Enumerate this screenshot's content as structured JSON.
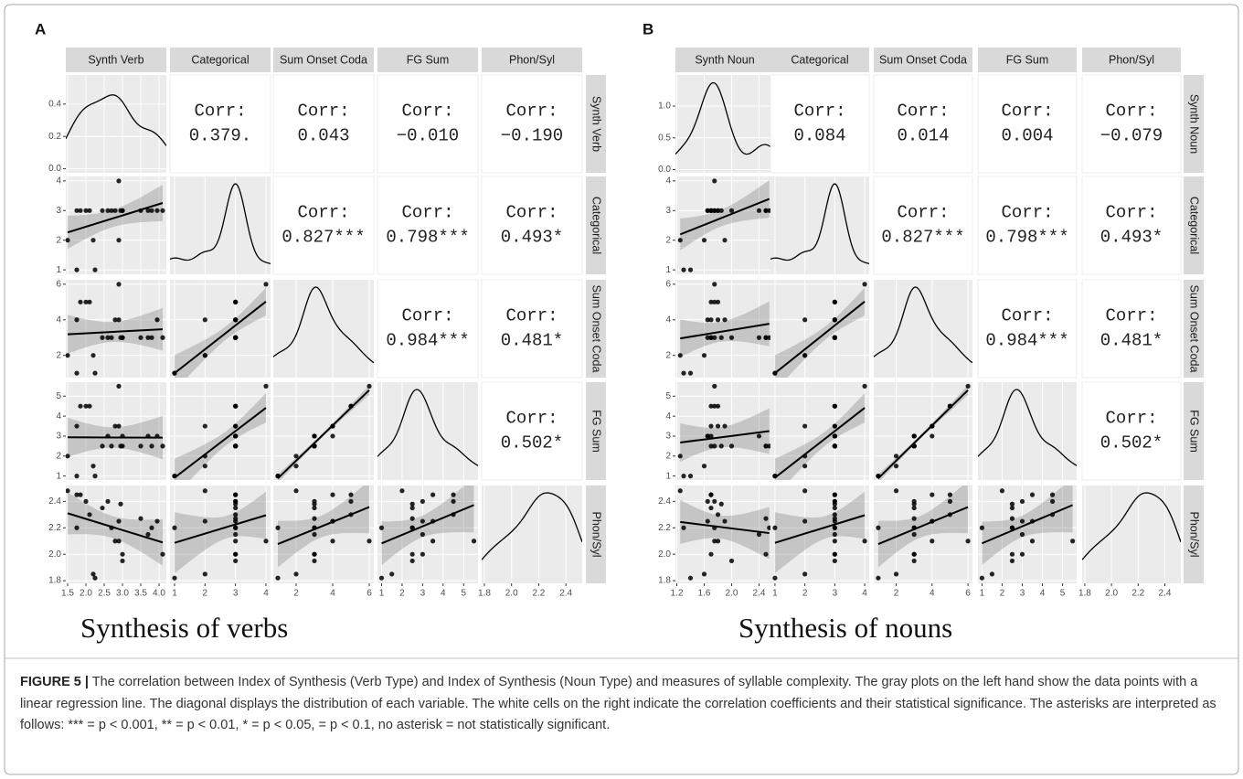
{
  "panels": [
    {
      "label": "A",
      "title": "Synthesis of verbs",
      "corr_label": "Corr:",
      "variables": [
        {
          "name": "Synth Verb",
          "values": [
            1.5,
            1.75,
            1.75,
            1.85,
            2.0,
            2.1,
            2.2,
            2.25,
            2.45,
            2.6,
            2.7,
            2.8,
            2.9,
            2.9,
            2.95,
            3.0,
            3.0,
            3.5,
            3.7,
            3.8,
            4.1,
            3.95
          ],
          "lim": [
            1.45,
            4.2
          ],
          "ticks": [
            1.5,
            {
              "value": 2,
              "label": "2.0"
            },
            2.5,
            {
              "value": 3,
              "label": "3.0"
            },
            3.5,
            {
              "value": 4,
              "label": "4.0"
            }
          ]
        },
        {
          "name": "Categorical",
          "values": [
            2,
            1,
            3,
            3,
            3,
            3,
            2,
            1,
            3,
            3,
            3,
            3,
            2,
            4,
            3,
            3,
            3,
            3,
            3,
            3,
            3,
            3
          ],
          "lim": [
            0.85,
            4.15
          ],
          "ticks": [
            1,
            2,
            3,
            4
          ]
        },
        {
          "name": "Sum Onset Coda",
          "values": [
            2,
            1,
            4,
            5,
            5,
            5,
            2,
            1,
            3,
            3,
            3,
            4,
            4,
            6,
            3,
            3,
            3,
            3,
            3,
            3,
            3,
            4
          ],
          "lim": [
            0.75,
            6.25
          ],
          "ticks": [
            2,
            4,
            6
          ]
        },
        {
          "name": "FG Sum",
          "values": [
            2,
            1,
            3.5,
            4.5,
            4.5,
            4.5,
            1.5,
            1,
            2.5,
            3,
            2.5,
            3.5,
            3.5,
            5.5,
            2.5,
            2.5,
            3,
            2.5,
            3,
            2.5,
            2.5,
            3
          ],
          "lim": [
            0.8,
            5.7
          ],
          "ticks": [
            1,
            2,
            3,
            4,
            5
          ]
        },
        {
          "name": "Phon/Syl",
          "values": [
            2.48,
            2.2,
            2.45,
            2.45,
            2.4,
            2.3,
            1.85,
            1.82,
            2.35,
            2.4,
            2.2,
            2.1,
            2.25,
            2.1,
            2.38,
            1.95,
            2.0,
            2.27,
            2.15,
            2.2,
            2.0,
            2.25
          ],
          "lim": [
            1.78,
            2.52
          ],
          "ticks": [
            1.8,
            {
              "value": 2,
              "label": "2.0"
            },
            2.2,
            2.4
          ]
        }
      ],
      "density_ylim": [
        -0.025,
        0.58
      ],
      "density_ticks": [
        {
          "value": 0,
          "label": "0.0"
        },
        0.2,
        0.4
      ],
      "correlations": [
        [
          "0.379.",
          "0.043",
          "−0.010",
          "−0.190"
        ],
        [
          "0.827***",
          "0.798***",
          "0.493*"
        ],
        [
          "0.984***",
          "0.481*"
        ],
        [
          "0.502*"
        ]
      ]
    },
    {
      "label": "B",
      "title": "Synthesis of nouns",
      "corr_label": "Corr:",
      "variables": [
        {
          "name": "Synth Noun",
          "values": [
            1.25,
            1.3,
            1.7,
            1.7,
            1.75,
            1.8,
            1.6,
            1.4,
            1.7,
            1.65,
            1.75,
            1.8,
            1.9,
            1.75,
            1.85,
            2.0,
            1.7,
            2.5,
            2.4,
            2.55,
            2.5,
            1.65
          ],
          "lim": [
            1.18,
            2.62
          ],
          "ticks": [
            1.2,
            1.6,
            {
              "value": 2,
              "label": "2.0"
            },
            2.4
          ]
        },
        {
          "name": "Categorical",
          "values": [
            2,
            1,
            3,
            3,
            3,
            3,
            2,
            1,
            3,
            3,
            3,
            3,
            2,
            4,
            3,
            3,
            3,
            3,
            3,
            3,
            3,
            3
          ],
          "lim": [
            0.85,
            4.15
          ],
          "ticks": [
            1,
            2,
            3,
            4
          ]
        },
        {
          "name": "Sum Onset Coda",
          "values": [
            2,
            1,
            4,
            5,
            5,
            5,
            2,
            1,
            3,
            3,
            3,
            4,
            4,
            6,
            3,
            3,
            3,
            3,
            3,
            3,
            3,
            4
          ],
          "lim": [
            0.75,
            6.25
          ],
          "ticks": [
            2,
            4,
            6
          ]
        },
        {
          "name": "FG Sum",
          "values": [
            2,
            1,
            3.5,
            4.5,
            4.5,
            4.5,
            1.5,
            1,
            2.5,
            3,
            2.5,
            3.5,
            3.5,
            5.5,
            2.5,
            2.5,
            3,
            2.5,
            3,
            2.5,
            2.5,
            3
          ],
          "lim": [
            0.8,
            5.7
          ],
          "ticks": [
            1,
            2,
            3,
            4,
            5
          ]
        },
        {
          "name": "Phon/Syl",
          "values": [
            2.48,
            2.2,
            2.45,
            2.45,
            2.4,
            2.3,
            1.85,
            1.82,
            2.35,
            2.4,
            2.2,
            2.1,
            2.25,
            2.1,
            2.38,
            1.95,
            2.0,
            2.27,
            2.15,
            2.2,
            2.0,
            2.25
          ],
          "lim": [
            1.78,
            2.52
          ],
          "ticks": [
            1.8,
            {
              "value": 2,
              "label": "2.0"
            },
            2.2,
            2.4
          ]
        }
      ],
      "density_ylim": [
        -0.05,
        1.49
      ],
      "density_ticks": [
        {
          "value": 0,
          "label": "0.0"
        },
        0.5,
        {
          "value": 1,
          "label": "1.0"
        }
      ],
      "correlations": [
        [
          "0.084",
          "0.014",
          "0.004",
          "−0.079"
        ],
        [
          "0.827***",
          "0.798***",
          "0.493*"
        ],
        [
          "0.984***",
          "0.481*"
        ],
        [
          "0.502*"
        ]
      ]
    }
  ],
  "caption": {
    "label": "FIGURE 5 |",
    "text": "The correlation between Index of Synthesis (Verb Type) and Index of Synthesis (Noun Type) and measures of syllable complexity. The gray plots on the left hand show the data points with a linear regression line. The diagonal displays the distribution of each variable. The white cells on the right indicate the correlation coefficients and their statistical significance. The asterisks are interpreted as follows: *** = p < 0.001, ** = p < 0.01, * = p < 0.05, = p < 0.1, no asterisk = not statistically significant."
  }
}
